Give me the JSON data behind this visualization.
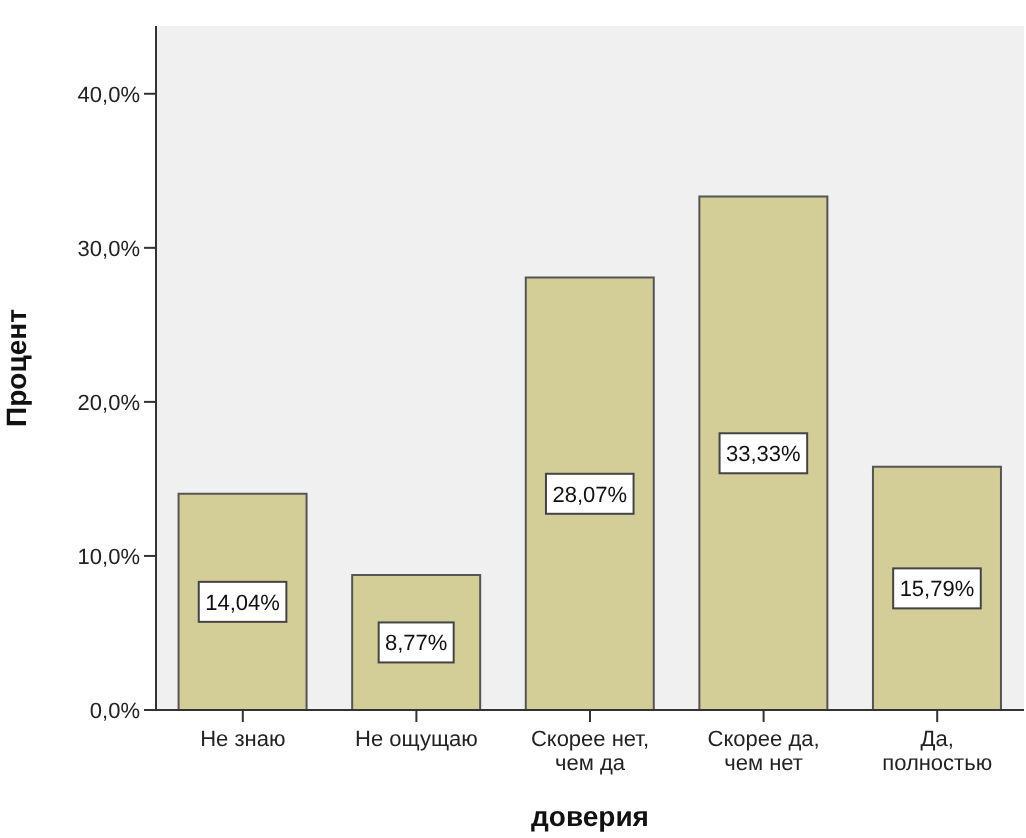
{
  "chart_data": {
    "type": "bar",
    "xlabel": "доверия",
    "ylabel": "Процент",
    "categories": [
      "Не знаю",
      "Не ощущаю",
      "Скорее нет, чем да",
      "Скорее да, чем нет",
      "Да, полностью"
    ],
    "values": [
      14.04,
      8.77,
      28.07,
      33.33,
      15.79
    ],
    "value_labels": [
      "14,04%",
      "8,77%",
      "28,07%",
      "33,33%",
      "15,79%"
    ],
    "color": "#d3ce97",
    "ylim": [
      0,
      44.4
    ],
    "yticks": [
      {
        "value": 0,
        "label": "0,0%"
      },
      {
        "value": 10,
        "label": "10,0%"
      },
      {
        "value": 20,
        "label": "20,0%"
      },
      {
        "value": 30,
        "label": "30,0%"
      },
      {
        "value": 40,
        "label": "40,0%"
      }
    ]
  }
}
